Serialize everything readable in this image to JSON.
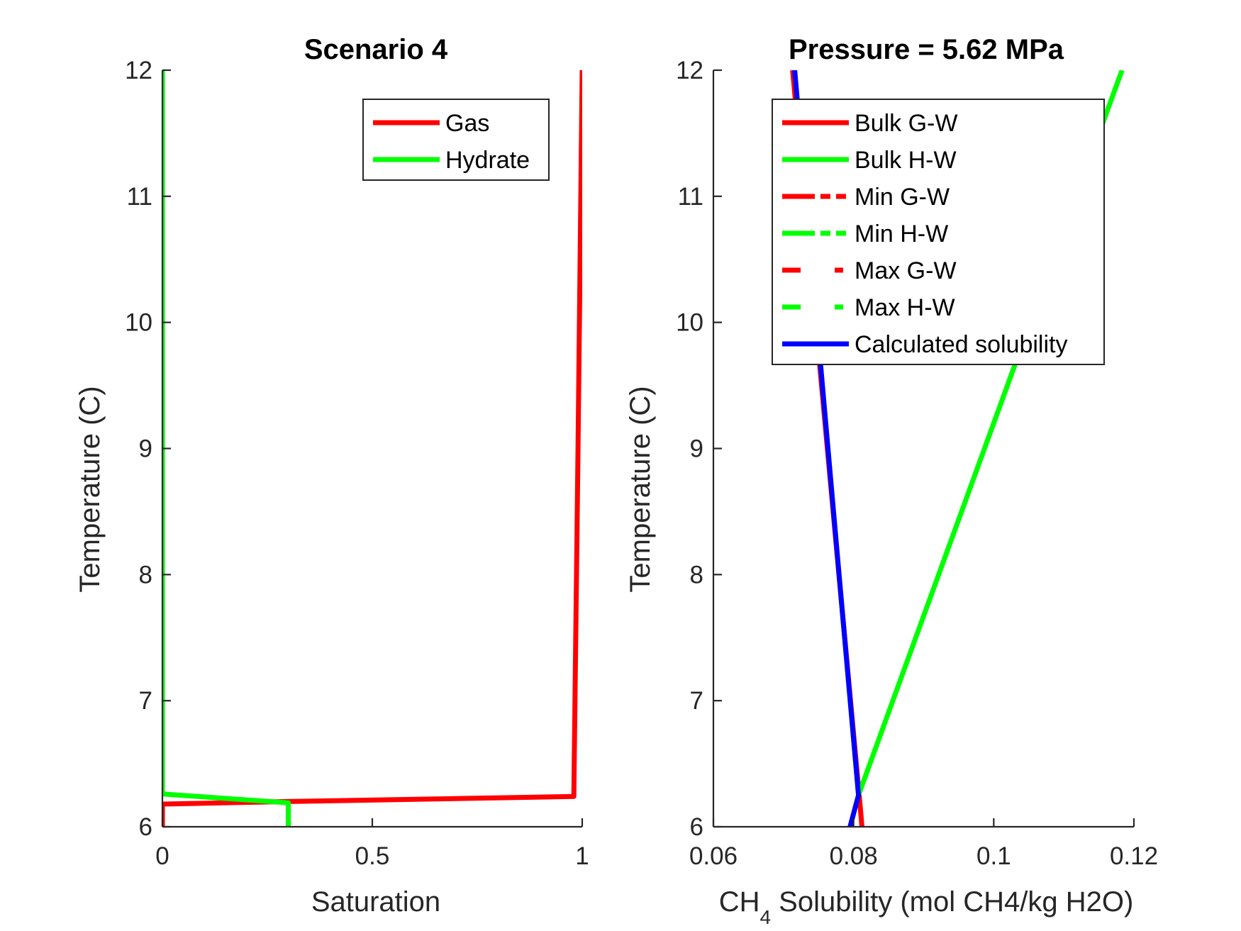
{
  "chart_data": [
    {
      "type": "line",
      "title": "Scenario 4",
      "xlabel": "Saturation",
      "ylabel": "Temperature (C)",
      "xlim": [
        0,
        1
      ],
      "ylim": [
        6,
        12
      ],
      "xticks": [
        0,
        0.5,
        1
      ],
      "yticks": [
        6,
        7,
        8,
        9,
        10,
        11,
        12
      ],
      "xtick_labels": [
        "0",
        "0.5",
        "1"
      ],
      "ytick_labels": [
        "6",
        "7",
        "8",
        "9",
        "10",
        "11",
        "12"
      ],
      "grid": false,
      "legend_position": "top-right",
      "series": [
        {
          "name": "Gas",
          "color": "#ff0000",
          "style": "solid",
          "points": [
            [
              0,
              6.0
            ],
            [
              0,
              6.18
            ],
            [
              0.3,
              6.2
            ],
            [
              0.98,
              6.24
            ],
            [
              0.98,
              6.25
            ],
            [
              0.99,
              9.0
            ],
            [
              1.0,
              12.0
            ]
          ]
        },
        {
          "name": "Hydrate",
          "color": "#00ff00",
          "style": "solid",
          "points": [
            [
              0,
              12.0
            ],
            [
              0,
              6.26
            ],
            [
              0.3,
              6.19
            ],
            [
              0.3,
              6.0
            ]
          ]
        }
      ]
    },
    {
      "type": "line",
      "title": "Pressure = 5.62 MPa",
      "xlabel_prefix": "CH",
      "xlabel_sub": "4",
      "xlabel_suffix": " Solubility (mol CH4/kg H2O)",
      "ylabel": "Temperature (C)",
      "xlim": [
        0.06,
        0.12
      ],
      "ylim": [
        6,
        12
      ],
      "xticks": [
        0.06,
        0.08,
        0.1,
        0.12
      ],
      "yticks": [
        6,
        7,
        8,
        9,
        10,
        11,
        12
      ],
      "xtick_labels": [
        "0.06",
        "0.08",
        "0.1",
        "0.12"
      ],
      "ytick_labels": [
        "6",
        "7",
        "8",
        "9",
        "10",
        "11",
        "12"
      ],
      "grid": false,
      "legend_position": "top-right",
      "series": [
        {
          "name": "Bulk G-W",
          "color": "#ff0000",
          "style": "solid",
          "points": [
            [
              0.0812,
              6.0
            ],
            [
              0.0808,
              6.25
            ],
            [
              0.0713,
              12.0
            ]
          ]
        },
        {
          "name": "Bulk H-W",
          "color": "#00ff00",
          "style": "solid",
          "points": [
            [
              0.0807,
              6.25
            ],
            [
              0.1183,
              12.0
            ]
          ]
        },
        {
          "name": "Min G-W",
          "color": "#ff0000",
          "style": "dashdot",
          "points": []
        },
        {
          "name": "Min H-W",
          "color": "#00ff00",
          "style": "dashdot",
          "points": []
        },
        {
          "name": "Max G-W",
          "color": "#ff0000",
          "style": "dashed",
          "points": []
        },
        {
          "name": "Max H-W",
          "color": "#00ff00",
          "style": "dashed",
          "points": []
        },
        {
          "name": "Calculated solubility",
          "color": "#0000ff",
          "style": "solid",
          "points": [
            [
              0.0795,
              6.0
            ],
            [
              0.0807,
              6.25
            ],
            [
              0.0716,
              12.0
            ]
          ]
        }
      ]
    }
  ]
}
